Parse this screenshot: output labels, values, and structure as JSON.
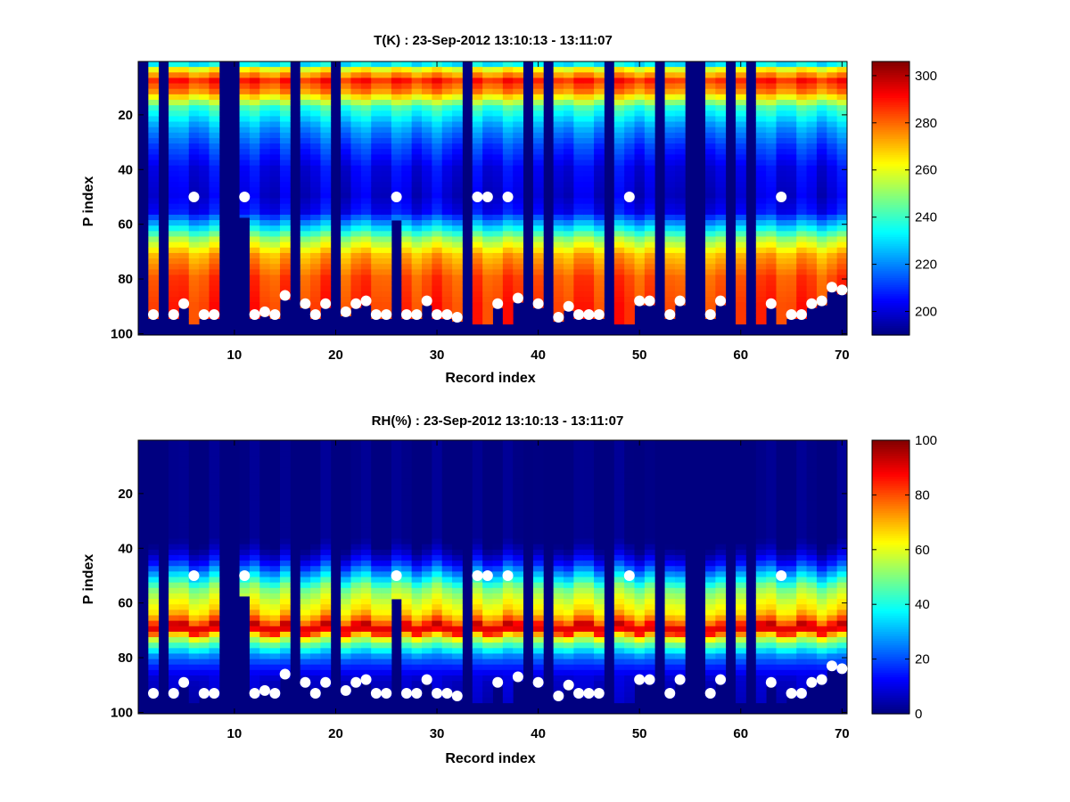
{
  "chart_data": [
    {
      "type": "heatmap",
      "title": "T(K) : 23-Sep-2012 13:10:13 - 13:11:07",
      "xlabel": "Record index",
      "ylabel": "P index",
      "xlim": [
        0.5,
        70.5
      ],
      "ylim": [
        0.5,
        100.5
      ],
      "y_reversed": true,
      "xticks": [
        10,
        20,
        30,
        40,
        50,
        60,
        70
      ],
      "yticks": [
        20,
        40,
        60,
        80,
        100
      ],
      "colormap": "jet",
      "clim": [
        190,
        306
      ],
      "colorbar_ticks": [
        200,
        220,
        240,
        260,
        280,
        300
      ],
      "missing_records": [
        1,
        3,
        9,
        10,
        16,
        20,
        33,
        39,
        41,
        47,
        52,
        55,
        56,
        59,
        61
      ],
      "partial_records": [
        {
          "record": 11,
          "valid_to_p": 57
        },
        {
          "record": 26,
          "valid_to_p": 58
        }
      ],
      "profile_by_p": {
        "p": [
          1,
          4,
          8,
          12,
          18,
          25,
          32,
          40,
          50,
          56,
          62,
          66,
          72,
          80,
          90,
          100
        ],
        "value": [
          218,
          262,
          288,
          276,
          240,
          223,
          212,
          203,
          200,
          205,
          232,
          252,
          272,
          283,
          286,
          286
        ]
      },
      "markers": [
        {
          "x": 2,
          "y": 93
        },
        {
          "x": 4,
          "y": 93
        },
        {
          "x": 5,
          "y": 89
        },
        {
          "x": 6,
          "y": 50
        },
        {
          "x": 7,
          "y": 93
        },
        {
          "x": 8,
          "y": 93
        },
        {
          "x": 11,
          "y": 50
        },
        {
          "x": 12,
          "y": 93
        },
        {
          "x": 13,
          "y": 92
        },
        {
          "x": 14,
          "y": 93
        },
        {
          "x": 15,
          "y": 86
        },
        {
          "x": 17,
          "y": 89
        },
        {
          "x": 18,
          "y": 93
        },
        {
          "x": 19,
          "y": 89
        },
        {
          "x": 21,
          "y": 92
        },
        {
          "x": 22,
          "y": 89
        },
        {
          "x": 23,
          "y": 88
        },
        {
          "x": 24,
          "y": 93
        },
        {
          "x": 25,
          "y": 93
        },
        {
          "x": 26,
          "y": 50
        },
        {
          "x": 27,
          "y": 93
        },
        {
          "x": 28,
          "y": 93
        },
        {
          "x": 29,
          "y": 88
        },
        {
          "x": 30,
          "y": 93
        },
        {
          "x": 31,
          "y": 93
        },
        {
          "x": 32,
          "y": 94
        },
        {
          "x": 34,
          "y": 50
        },
        {
          "x": 35,
          "y": 50
        },
        {
          "x": 36,
          "y": 89
        },
        {
          "x": 37,
          "y": 50
        },
        {
          "x": 38,
          "y": 87
        },
        {
          "x": 40,
          "y": 89
        },
        {
          "x": 42,
          "y": 94
        },
        {
          "x": 43,
          "y": 90
        },
        {
          "x": 44,
          "y": 93
        },
        {
          "x": 45,
          "y": 93
        },
        {
          "x": 46,
          "y": 93
        },
        {
          "x": 49,
          "y": 50
        },
        {
          "x": 50,
          "y": 88
        },
        {
          "x": 51,
          "y": 88
        },
        {
          "x": 53,
          "y": 93
        },
        {
          "x": 54,
          "y": 88
        },
        {
          "x": 57,
          "y": 93
        },
        {
          "x": 58,
          "y": 88
        },
        {
          "x": 63,
          "y": 89
        },
        {
          "x": 64,
          "y": 50
        },
        {
          "x": 65,
          "y": 93
        },
        {
          "x": 66,
          "y": 93
        },
        {
          "x": 67,
          "y": 89
        },
        {
          "x": 68,
          "y": 88
        },
        {
          "x": 69,
          "y": 83
        },
        {
          "x": 70,
          "y": 84
        }
      ]
    },
    {
      "type": "heatmap",
      "title": "RH(%) : 23-Sep-2012 13:10:13 - 13:11:07",
      "xlabel": "Record index",
      "ylabel": "P index",
      "xlim": [
        0.5,
        70.5
      ],
      "ylim": [
        0.5,
        100.5
      ],
      "y_reversed": true,
      "xticks": [
        10,
        20,
        30,
        40,
        50,
        60,
        70
      ],
      "yticks": [
        20,
        40,
        60,
        80,
        100
      ],
      "colormap": "jet",
      "clim": [
        0,
        100
      ],
      "colorbar_ticks": [
        0,
        20,
        40,
        60,
        80,
        100
      ],
      "missing_records": [
        1,
        3,
        9,
        10,
        16,
        20,
        33,
        39,
        41,
        47,
        52,
        55,
        56,
        59,
        61
      ],
      "partial_records": [
        {
          "record": 11,
          "valid_to_p": 57
        },
        {
          "record": 26,
          "valid_to_p": 58
        }
      ],
      "profile_by_p": {
        "p": [
          1,
          38,
          42,
          46,
          50,
          55,
          60,
          64,
          67,
          69,
          71,
          72,
          74,
          77,
          80,
          84,
          88,
          100
        ],
        "value": [
          0,
          0,
          5,
          15,
          30,
          50,
          60,
          66,
          78,
          92,
          88,
          72,
          55,
          40,
          25,
          15,
          8,
          5
        ]
      },
      "markers": [
        {
          "x": 2,
          "y": 93
        },
        {
          "x": 4,
          "y": 93
        },
        {
          "x": 5,
          "y": 89
        },
        {
          "x": 6,
          "y": 50
        },
        {
          "x": 7,
          "y": 93
        },
        {
          "x": 8,
          "y": 93
        },
        {
          "x": 11,
          "y": 50
        },
        {
          "x": 12,
          "y": 93
        },
        {
          "x": 13,
          "y": 92
        },
        {
          "x": 14,
          "y": 93
        },
        {
          "x": 15,
          "y": 86
        },
        {
          "x": 17,
          "y": 89
        },
        {
          "x": 18,
          "y": 93
        },
        {
          "x": 19,
          "y": 89
        },
        {
          "x": 21,
          "y": 92
        },
        {
          "x": 22,
          "y": 89
        },
        {
          "x": 23,
          "y": 88
        },
        {
          "x": 24,
          "y": 93
        },
        {
          "x": 25,
          "y": 93
        },
        {
          "x": 26,
          "y": 50
        },
        {
          "x": 27,
          "y": 93
        },
        {
          "x": 28,
          "y": 93
        },
        {
          "x": 29,
          "y": 88
        },
        {
          "x": 30,
          "y": 93
        },
        {
          "x": 31,
          "y": 93
        },
        {
          "x": 32,
          "y": 94
        },
        {
          "x": 34,
          "y": 50
        },
        {
          "x": 35,
          "y": 50
        },
        {
          "x": 36,
          "y": 89
        },
        {
          "x": 37,
          "y": 50
        },
        {
          "x": 38,
          "y": 87
        },
        {
          "x": 40,
          "y": 89
        },
        {
          "x": 42,
          "y": 94
        },
        {
          "x": 43,
          "y": 90
        },
        {
          "x": 44,
          "y": 93
        },
        {
          "x": 45,
          "y": 93
        },
        {
          "x": 46,
          "y": 93
        },
        {
          "x": 49,
          "y": 50
        },
        {
          "x": 50,
          "y": 88
        },
        {
          "x": 51,
          "y": 88
        },
        {
          "x": 53,
          "y": 93
        },
        {
          "x": 54,
          "y": 88
        },
        {
          "x": 57,
          "y": 93
        },
        {
          "x": 58,
          "y": 88
        },
        {
          "x": 63,
          "y": 89
        },
        {
          "x": 64,
          "y": 50
        },
        {
          "x": 65,
          "y": 93
        },
        {
          "x": 66,
          "y": 93
        },
        {
          "x": 67,
          "y": 89
        },
        {
          "x": 68,
          "y": 88
        },
        {
          "x": 69,
          "y": 83
        },
        {
          "x": 70,
          "y": 84
        }
      ]
    }
  ]
}
